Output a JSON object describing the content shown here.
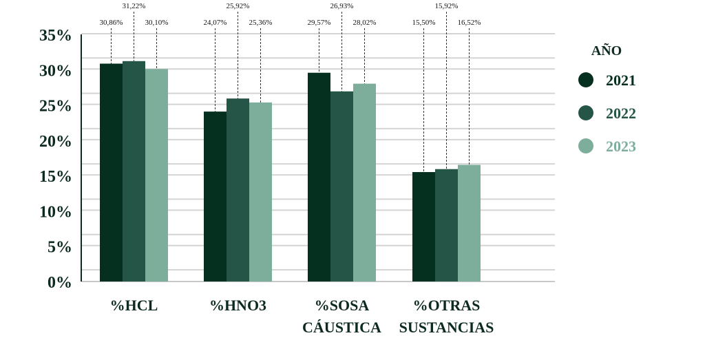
{
  "chart_data": {
    "type": "bar",
    "categories": [
      [
        "%HCL"
      ],
      [
        "%HNO3"
      ],
      [
        "%SOSA",
        "CÁUSTICA"
      ],
      [
        "%OTRAS",
        "SUSTANCIAS"
      ]
    ],
    "series": [
      {
        "name": "2021",
        "color": "#05301f",
        "values": [
          30.86,
          24.07,
          29.57,
          15.5
        ],
        "labels": [
          "30,86%",
          "24,07%",
          "29,57%",
          "15,50%"
        ]
      },
      {
        "name": "2022",
        "color": "#245546",
        "values": [
          31.22,
          25.92,
          26.93,
          15.92
        ],
        "labels": [
          "31,22%",
          "25,92%",
          "26,93%",
          "15,92%"
        ]
      },
      {
        "name": "2023",
        "color": "#7dad9b",
        "values": [
          30.1,
          25.36,
          28.02,
          16.52
        ],
        "labels": [
          "30,10%",
          "25,36%",
          "28,02%",
          "16,52%"
        ]
      }
    ],
    "yticks": [
      "0%",
      "5%",
      "10%",
      "15%",
      "20%",
      "25%",
      "30%",
      "35%"
    ],
    "ylim": [
      0,
      35
    ],
    "grid": true,
    "legend": {
      "title": "AÑO",
      "placement": "right"
    },
    "title": "",
    "xlabel": "",
    "ylabel": ""
  }
}
